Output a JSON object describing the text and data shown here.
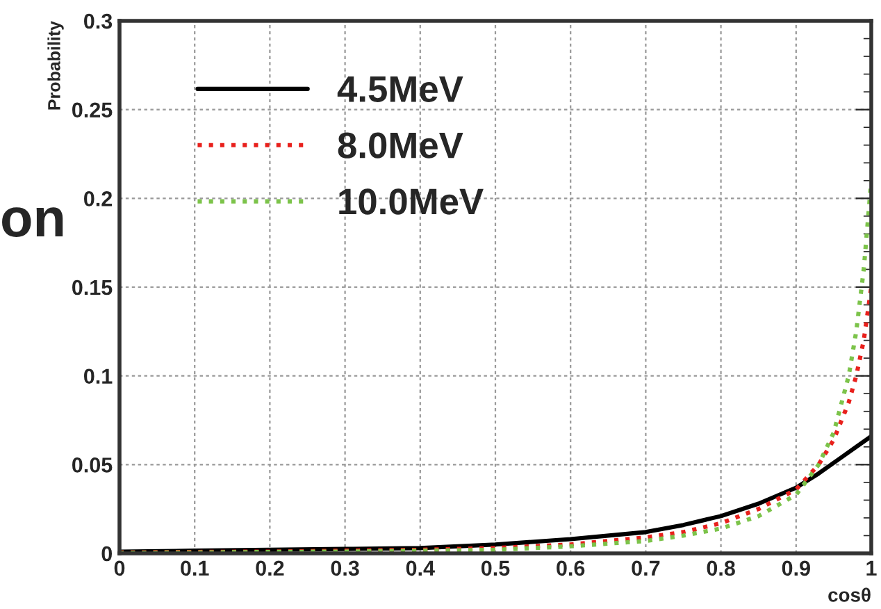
{
  "chart_data": {
    "type": "line",
    "xlabel": "cosθ",
    "ylabel": "Probability",
    "annotations": [
      "on"
    ],
    "xlim": [
      0,
      1
    ],
    "ylim": [
      0,
      0.3
    ],
    "xticks": [
      0,
      0.1,
      0.2,
      0.3,
      0.4,
      0.5,
      0.6,
      0.7,
      0.8,
      0.9,
      1
    ],
    "yticks": [
      0,
      0.05,
      0.1,
      0.15,
      0.2,
      0.25,
      0.3
    ],
    "grid": true,
    "legend": "top left",
    "series": [
      {
        "name": "4.5MeV",
        "color": "#000000",
        "line_style": "solid",
        "x": [
          0,
          0.1,
          0.2,
          0.3,
          0.4,
          0.5,
          0.6,
          0.7,
          0.75,
          0.8,
          0.85,
          0.9,
          0.93,
          0.96,
          0.98,
          1
        ],
        "values": [
          0.001,
          0.0015,
          0.002,
          0.0025,
          0.003,
          0.005,
          0.008,
          0.012,
          0.016,
          0.021,
          0.028,
          0.037,
          0.045,
          0.054,
          0.06,
          0.066
        ]
      },
      {
        "name": "8.0MeV",
        "color": "#e8201c",
        "line_style": "dotted",
        "x": [
          0,
          0.1,
          0.2,
          0.3,
          0.4,
          0.5,
          0.6,
          0.7,
          0.75,
          0.8,
          0.85,
          0.9,
          0.93,
          0.95,
          0.97,
          0.98,
          0.99,
          1
        ],
        "values": [
          0.0005,
          0.0008,
          0.001,
          0.0015,
          0.002,
          0.003,
          0.005,
          0.009,
          0.012,
          0.017,
          0.025,
          0.036,
          0.05,
          0.064,
          0.085,
          0.1,
          0.12,
          0.15
        ]
      },
      {
        "name": "10.0MeV",
        "color": "#7cc34a",
        "line_style": "dotted",
        "x": [
          0,
          0.1,
          0.2,
          0.3,
          0.4,
          0.5,
          0.6,
          0.7,
          0.75,
          0.8,
          0.85,
          0.9,
          0.93,
          0.95,
          0.97,
          0.98,
          0.99,
          1
        ],
        "values": [
          0.0003,
          0.0005,
          0.0008,
          0.001,
          0.0015,
          0.002,
          0.004,
          0.007,
          0.01,
          0.014,
          0.021,
          0.033,
          0.05,
          0.068,
          0.1,
          0.125,
          0.16,
          0.21
        ]
      }
    ]
  }
}
